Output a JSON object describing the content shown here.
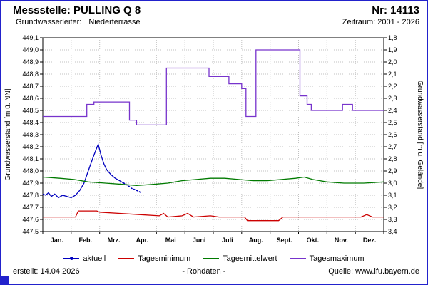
{
  "header": {
    "title": "Messstelle: PULLING Q 8",
    "number": "Nr: 14113",
    "aquifer_label": "Grundwasserleiter:",
    "aquifer_value": "Niederterrasse",
    "period": "Zeitraum: 2001 - 2026"
  },
  "colors": {
    "border": "#2222cc",
    "grid": "#c0c0c0"
  },
  "chart_data": {
    "type": "line",
    "title": "",
    "grid": true,
    "legend_position": "bottom",
    "x_axis": {
      "unit": "month",
      "months": [
        "Jan.",
        "Feb.",
        "Mrz.",
        "Apr.",
        "Mai",
        "Juni",
        "Juli",
        "Aug.",
        "Sept.",
        "Okt.",
        "Nov.",
        "Dez."
      ]
    },
    "y_left": {
      "label": "Grundwasserstand [m ü. NN]",
      "min": 447.5,
      "max": 449.1,
      "ticks": [
        "449,1",
        "449,0",
        "448,9",
        "448,8",
        "448,7",
        "448,6",
        "448,5",
        "448,4",
        "448,3",
        "448,2",
        "448,1",
        "448,0",
        "447,9",
        "447,8",
        "447,7",
        "447,6",
        "447,5"
      ]
    },
    "y_right": {
      "label": "Grundwasserstand [m u. Gelände]",
      "min": 1.8,
      "max": 3.4,
      "inverted": true,
      "ticks": [
        "1,8",
        "1,9",
        "2,0",
        "2,1",
        "2,2",
        "2,3",
        "2,4",
        "2,5",
        "2,6",
        "2,7",
        "2,8",
        "2,9",
        "3,0",
        "3,1",
        "3,2",
        "3,3",
        "3,4"
      ]
    },
    "series": [
      {
        "name": "aktuell",
        "color": "#0000bf",
        "legend_marker": true,
        "dash_from_index": 22,
        "points": [
          [
            0.0,
            447.81
          ],
          [
            0.1,
            447.8
          ],
          [
            0.2,
            447.82
          ],
          [
            0.3,
            447.79
          ],
          [
            0.42,
            447.81
          ],
          [
            0.55,
            447.78
          ],
          [
            0.7,
            447.8
          ],
          [
            0.85,
            447.79
          ],
          [
            1.0,
            447.78
          ],
          [
            1.15,
            447.8
          ],
          [
            1.3,
            447.84
          ],
          [
            1.45,
            447.9
          ],
          [
            1.6,
            448.0
          ],
          [
            1.75,
            448.1
          ],
          [
            1.88,
            448.18
          ],
          [
            1.95,
            448.22
          ],
          [
            2.05,
            448.13
          ],
          [
            2.15,
            448.06
          ],
          [
            2.25,
            448.01
          ],
          [
            2.4,
            447.97
          ],
          [
            2.55,
            447.94
          ],
          [
            2.7,
            447.92
          ],
          [
            2.85,
            447.9
          ],
          [
            3.0,
            447.88
          ],
          [
            3.1,
            447.86
          ],
          [
            3.2,
            447.85
          ],
          [
            3.3,
            447.84
          ],
          [
            3.4,
            447.83
          ],
          [
            3.45,
            447.82
          ]
        ]
      },
      {
        "name": "Tagesminimum",
        "color": "#cc0000",
        "points": [
          [
            0,
            447.62
          ],
          [
            0.6,
            447.62
          ],
          [
            1.15,
            447.62
          ],
          [
            1.25,
            447.67
          ],
          [
            1.9,
            447.67
          ],
          [
            2.0,
            447.66
          ],
          [
            2.7,
            447.65
          ],
          [
            3.4,
            447.64
          ],
          [
            4.1,
            447.63
          ],
          [
            4.25,
            447.65
          ],
          [
            4.4,
            447.62
          ],
          [
            4.9,
            447.63
          ],
          [
            5.1,
            447.65
          ],
          [
            5.3,
            447.62
          ],
          [
            5.9,
            447.63
          ],
          [
            6.2,
            447.62
          ],
          [
            7.1,
            447.62
          ],
          [
            7.2,
            447.59
          ],
          [
            8.3,
            447.59
          ],
          [
            8.45,
            447.62
          ],
          [
            9.5,
            447.62
          ],
          [
            10.5,
            447.62
          ],
          [
            11.2,
            447.62
          ],
          [
            11.4,
            447.64
          ],
          [
            11.6,
            447.62
          ],
          [
            12,
            447.62
          ]
        ]
      },
      {
        "name": "Tagesmittelwert",
        "color": "#007a00",
        "points": [
          [
            0,
            447.95
          ],
          [
            0.6,
            447.94
          ],
          [
            1.1,
            447.93
          ],
          [
            1.6,
            447.91
          ],
          [
            2.2,
            447.9
          ],
          [
            2.8,
            447.89
          ],
          [
            3.3,
            447.88
          ],
          [
            3.9,
            447.89
          ],
          [
            4.4,
            447.9
          ],
          [
            4.9,
            447.92
          ],
          [
            5.4,
            447.93
          ],
          [
            5.9,
            447.94
          ],
          [
            6.4,
            447.94
          ],
          [
            6.9,
            447.93
          ],
          [
            7.4,
            447.92
          ],
          [
            7.9,
            447.92
          ],
          [
            8.4,
            447.93
          ],
          [
            8.9,
            447.94
          ],
          [
            9.2,
            447.95
          ],
          [
            9.5,
            447.93
          ],
          [
            10.0,
            447.91
          ],
          [
            10.6,
            447.9
          ],
          [
            11.3,
            447.9
          ],
          [
            12,
            447.91
          ]
        ]
      },
      {
        "name": "Tagesmaximum",
        "color": "#7733cc",
        "points": [
          [
            0,
            448.45
          ],
          [
            1.55,
            448.45
          ],
          [
            1.55,
            448.55
          ],
          [
            1.8,
            448.55
          ],
          [
            1.8,
            448.57
          ],
          [
            3.05,
            448.57
          ],
          [
            3.05,
            448.42
          ],
          [
            3.3,
            448.42
          ],
          [
            3.3,
            448.38
          ],
          [
            4.35,
            448.38
          ],
          [
            4.35,
            448.85
          ],
          [
            5.85,
            448.85
          ],
          [
            5.85,
            448.78
          ],
          [
            6.55,
            448.78
          ],
          [
            6.55,
            448.72
          ],
          [
            7.0,
            448.72
          ],
          [
            7.0,
            448.68
          ],
          [
            7.15,
            448.68
          ],
          [
            7.15,
            448.45
          ],
          [
            7.5,
            448.45
          ],
          [
            7.5,
            449.0
          ],
          [
            9.05,
            449.0
          ],
          [
            9.05,
            448.62
          ],
          [
            9.3,
            448.62
          ],
          [
            9.3,
            448.55
          ],
          [
            9.45,
            448.55
          ],
          [
            9.45,
            448.5
          ],
          [
            10.55,
            448.5
          ],
          [
            10.55,
            448.55
          ],
          [
            10.9,
            448.55
          ],
          [
            10.9,
            448.5
          ],
          [
            12,
            448.5
          ]
        ]
      }
    ]
  },
  "footer": {
    "created": "erstellt: 14.04.2026",
    "center": "- Rohdaten -",
    "source": "Quelle: www.lfu.bayern.de"
  }
}
